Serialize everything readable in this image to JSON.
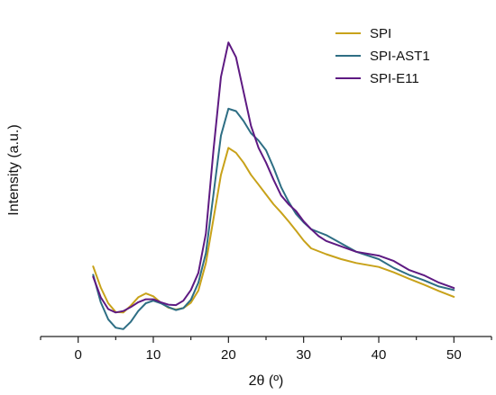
{
  "chart_data": {
    "type": "line",
    "title": "",
    "xlabel": "2θ (º)",
    "ylabel": "Intensity (a.u.)",
    "xlim": [
      -5,
      55
    ],
    "x_ticks": [
      0,
      10,
      20,
      30,
      40,
      50
    ],
    "y_ticks_shown": false,
    "grid": false,
    "legend_position": "top-right",
    "series": [
      {
        "name": "SPI",
        "color": "#c8a21a",
        "points": [
          [
            2,
            14.3
          ],
          [
            3,
            10.0
          ],
          [
            4,
            6.8
          ],
          [
            5,
            5.0
          ],
          [
            6,
            4.9
          ],
          [
            7,
            6.3
          ],
          [
            8,
            8.0
          ],
          [
            9,
            8.8
          ],
          [
            10,
            8.2
          ],
          [
            11,
            6.9
          ],
          [
            12,
            5.9
          ],
          [
            13,
            5.5
          ],
          [
            14,
            5.8
          ],
          [
            15,
            6.9
          ],
          [
            16,
            9.4
          ],
          [
            17,
            15.0
          ],
          [
            18,
            24.0
          ],
          [
            19,
            33.0
          ],
          [
            20,
            38.5
          ],
          [
            21,
            37.5
          ],
          [
            22,
            35.5
          ],
          [
            23,
            33.0
          ],
          [
            24,
            31.0
          ],
          [
            25,
            29.0
          ],
          [
            26,
            27.0
          ],
          [
            27,
            25.3
          ],
          [
            28,
            23.5
          ],
          [
            29,
            21.6
          ],
          [
            30,
            19.6
          ],
          [
            31,
            18.0
          ],
          [
            33,
            16.8
          ],
          [
            35,
            15.8
          ],
          [
            37,
            15.0
          ],
          [
            40,
            14.2
          ],
          [
            42,
            13.1
          ],
          [
            44,
            11.8
          ],
          [
            46,
            10.6
          ],
          [
            48,
            9.3
          ],
          [
            50,
            8.1
          ]
        ]
      },
      {
        "name": "SPI-AST1",
        "color": "#2e6e84",
        "points": [
          [
            2,
            12.6
          ],
          [
            3,
            7.0
          ],
          [
            4,
            3.5
          ],
          [
            5,
            1.8
          ],
          [
            6,
            1.5
          ],
          [
            7,
            3.0
          ],
          [
            8,
            5.2
          ],
          [
            9,
            6.8
          ],
          [
            10,
            7.3
          ],
          [
            11,
            6.8
          ],
          [
            12,
            6.0
          ],
          [
            13,
            5.4
          ],
          [
            14,
            5.8
          ],
          [
            15,
            7.5
          ],
          [
            16,
            11.0
          ],
          [
            17,
            17.0
          ],
          [
            18,
            29.0
          ],
          [
            19,
            41.0
          ],
          [
            20,
            46.5
          ],
          [
            21,
            46.0
          ],
          [
            22,
            44.0
          ],
          [
            23,
            41.5
          ],
          [
            24,
            40.0
          ],
          [
            25,
            38.0
          ],
          [
            26,
            34.5
          ],
          [
            27,
            30.5
          ],
          [
            28,
            27.5
          ],
          [
            29,
            25.0
          ],
          [
            30,
            23.3
          ],
          [
            31,
            21.9
          ],
          [
            32,
            21.3
          ],
          [
            33,
            20.7
          ],
          [
            35,
            19.0
          ],
          [
            37,
            17.3
          ],
          [
            40,
            15.8
          ],
          [
            42,
            14.0
          ],
          [
            44,
            12.6
          ],
          [
            46,
            11.5
          ],
          [
            48,
            10.2
          ],
          [
            50,
            9.5
          ]
        ]
      },
      {
        "name": "SPI-E11",
        "color": "#5e1a82",
        "points": [
          [
            2,
            12.2
          ],
          [
            3,
            8.0
          ],
          [
            4,
            5.6
          ],
          [
            5,
            4.9
          ],
          [
            6,
            5.2
          ],
          [
            7,
            6.0
          ],
          [
            8,
            7.0
          ],
          [
            9,
            7.6
          ],
          [
            10,
            7.6
          ],
          [
            11,
            7.0
          ],
          [
            12,
            6.5
          ],
          [
            13,
            6.4
          ],
          [
            14,
            7.3
          ],
          [
            15,
            9.5
          ],
          [
            16,
            13.0
          ],
          [
            17,
            21.0
          ],
          [
            18,
            38.0
          ],
          [
            19,
            53.0
          ],
          [
            20,
            60.0
          ],
          [
            21,
            57.0
          ],
          [
            22,
            50.0
          ],
          [
            23,
            43.0
          ],
          [
            24,
            38.5
          ],
          [
            25,
            35.5
          ],
          [
            26,
            32.0
          ],
          [
            27,
            28.8
          ],
          [
            28,
            27.0
          ],
          [
            29,
            25.6
          ],
          [
            30,
            23.5
          ],
          [
            31,
            21.9
          ],
          [
            32,
            20.5
          ],
          [
            33,
            19.5
          ],
          [
            35,
            18.4
          ],
          [
            37,
            17.3
          ],
          [
            40,
            16.5
          ],
          [
            42,
            15.4
          ],
          [
            44,
            13.6
          ],
          [
            46,
            12.5
          ],
          [
            48,
            11.0
          ],
          [
            50,
            9.9
          ]
        ]
      }
    ]
  }
}
